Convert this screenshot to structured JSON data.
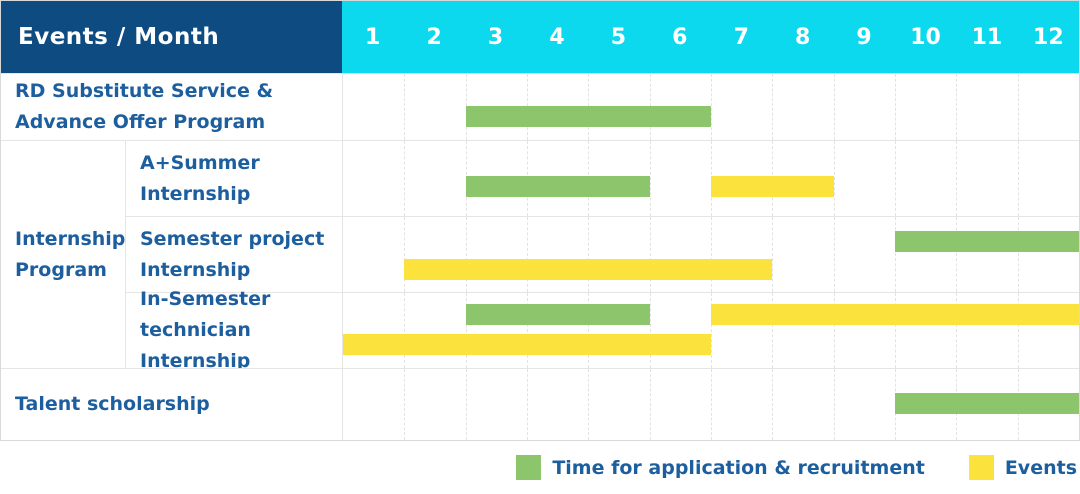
{
  "header": {
    "title": "Events / Month",
    "months": [
      "1",
      "2",
      "3",
      "4",
      "5",
      "6",
      "7",
      "8",
      "9",
      "10",
      "11",
      "12"
    ]
  },
  "colors": {
    "header_bg": "#0e4b80",
    "months_bg": "#0cd8ee",
    "bar_green": "#8cc56b",
    "bar_yellow": "#fce23d",
    "text_blue": "#1d5f9e",
    "grid_line": "#e2e2e2",
    "outer_border": "#d9d9d9"
  },
  "series": [
    {
      "key": "recruitment",
      "label": "Time for application & recruitment",
      "color": "#8cc56b"
    },
    {
      "key": "events",
      "label": "Events",
      "color": "#fce23d"
    }
  ],
  "chart_data": {
    "type": "gantt",
    "x_axis": {
      "unit": "month",
      "ticks": [
        1,
        2,
        3,
        4,
        5,
        6,
        7,
        8,
        9,
        10,
        11,
        12
      ],
      "range": [
        1,
        12
      ]
    },
    "legend_position": "bottom-right",
    "group": {
      "id": "internship-program",
      "label": "Internship Program",
      "label_lines": [
        "Internship",
        "Program"
      ],
      "row_ids": [
        "a-summer-internship",
        "semester-project-internship",
        "in-semester-technician-internship"
      ]
    },
    "rows": [
      {
        "id": "rd-substitute-service",
        "label": "RD Substitute Service & Advance Offer Program",
        "label_lines": [
          "RD Substitute Service &",
          "Advance Offer Program"
        ],
        "group": null,
        "bars": [
          {
            "series": "recruitment",
            "start_month": 3,
            "end_month": 6,
            "line": 0
          }
        ]
      },
      {
        "id": "a-summer-internship",
        "label": "A+Summer Internship",
        "label_lines": [
          "A+Summer",
          "Internship"
        ],
        "group": "internship-program",
        "bars": [
          {
            "series": "recruitment",
            "start_month": 3,
            "end_month": 5,
            "line": 0
          },
          {
            "series": "events",
            "start_month": 7,
            "end_month": 8,
            "line": 0
          }
        ]
      },
      {
        "id": "semester-project-internship",
        "label": "Semester project Internship",
        "label_lines": [
          "Semester project",
          "Internship"
        ],
        "group": "internship-program",
        "bars": [
          {
            "series": "recruitment",
            "start_month": 10,
            "end_month": 12,
            "line": 0
          },
          {
            "series": "events",
            "start_month": 2,
            "end_month": 7,
            "line": 1
          }
        ]
      },
      {
        "id": "in-semester-technician-internship",
        "label": "In-Semester technician Internship",
        "label_lines": [
          "In-Semester",
          "technician Internship"
        ],
        "group": "internship-program",
        "bars": [
          {
            "series": "recruitment",
            "start_month": 3,
            "end_month": 5,
            "line": 0
          },
          {
            "series": "events",
            "start_month": 7,
            "end_month": 12,
            "line": 0
          },
          {
            "series": "events",
            "start_month": 1,
            "end_month": 6,
            "line": 1
          }
        ]
      },
      {
        "id": "talent-scholarship",
        "label": "Talent scholarship",
        "label_lines": [
          "Talent scholarship"
        ],
        "group": null,
        "bars": [
          {
            "series": "recruitment",
            "start_month": 10,
            "end_month": 12,
            "line": 0
          }
        ]
      }
    ]
  }
}
